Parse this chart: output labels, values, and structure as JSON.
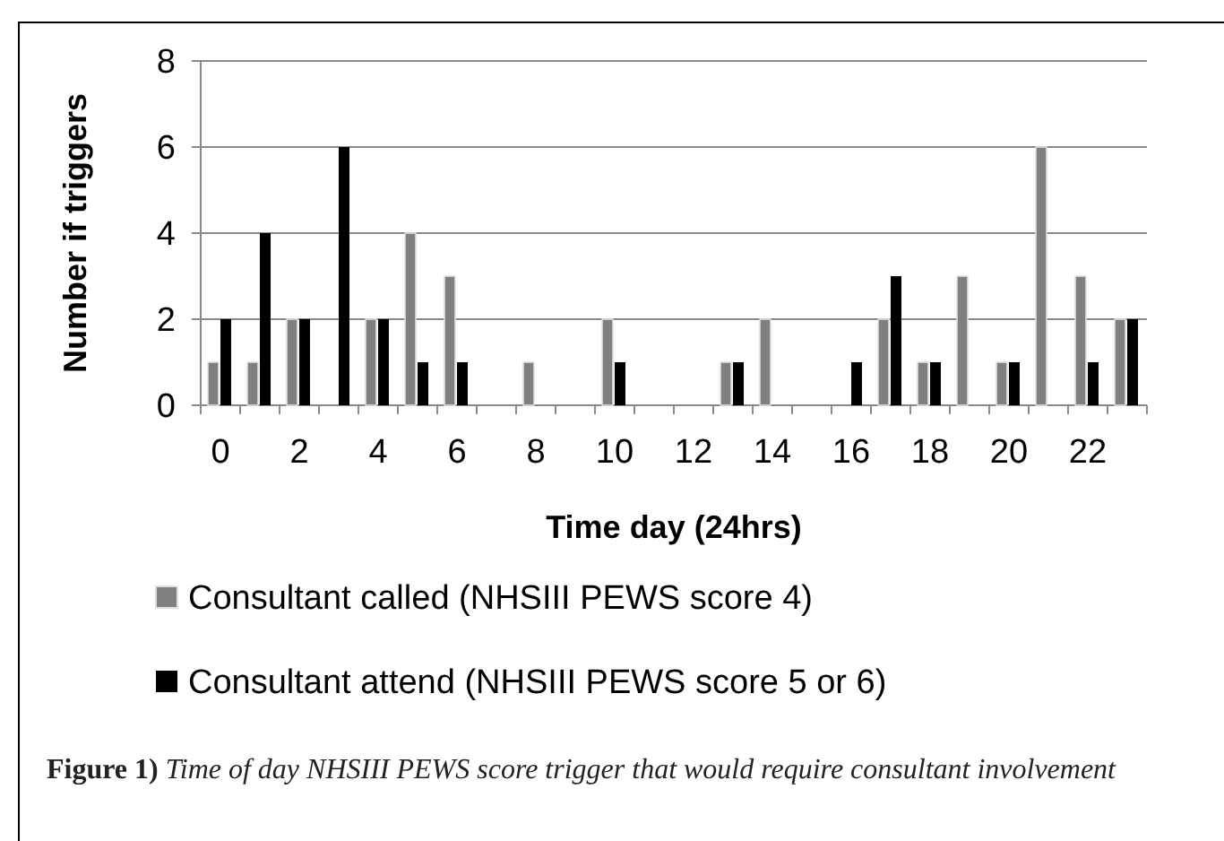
{
  "chart_data": {
    "type": "bar",
    "xlabel": "Time day (24hrs)",
    "ylabel": "Number if triggers",
    "categories": [
      "0",
      null,
      "2",
      null,
      "4",
      null,
      "6",
      null,
      "8",
      null,
      "10",
      null,
      "12",
      null,
      "14",
      null,
      "16",
      null,
      "18",
      null,
      "20",
      null,
      "22",
      null
    ],
    "series": [
      {
        "name": "Consultant called (NHSIII PEWS score 4)",
        "color": "#808080",
        "values": [
          1,
          1,
          2,
          0,
          2,
          4,
          3,
          0,
          1,
          0,
          2,
          0,
          0,
          1,
          2,
          0,
          0,
          2,
          1,
          3,
          1,
          6,
          3,
          2
        ]
      },
      {
        "name": "Consultant attend (NHSIII PEWS score 5 or 6)",
        "color": "#000000",
        "values": [
          2,
          4,
          2,
          6,
          2,
          1,
          1,
          0,
          0,
          0,
          1,
          0,
          0,
          1,
          0,
          0,
          1,
          3,
          1,
          0,
          1,
          0,
          1,
          2
        ]
      }
    ],
    "ylim": [
      0,
      8
    ],
    "yticks": [
      0,
      2,
      4,
      6,
      8
    ],
    "grid": "y",
    "legend": "bottom",
    "annotations": [
      "Figure 1)",
      "Time of day NHSIII PEWS score trigger that would require consultant involvement"
    ]
  }
}
